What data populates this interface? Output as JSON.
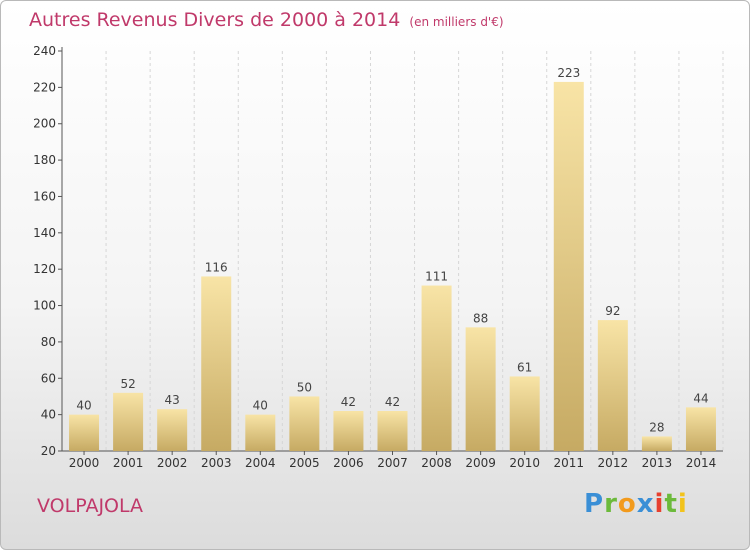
{
  "title": "Autres Revenus Divers de 2000 à 2014",
  "unit": "(en milliers d'€)",
  "commune": "VOLPAJOLA",
  "brand": {
    "letters": [
      "P",
      "r",
      "o",
      "x",
      "i",
      "t",
      "i"
    ],
    "colors": [
      "#3a8fd6",
      "#6cba3b",
      "#f29a1c",
      "#3a8fd6",
      "#e7402f",
      "#6cba3b",
      "#f2c31c"
    ]
  },
  "colors": {
    "accent": "#c0396a",
    "bar_light": "#f7e2a2",
    "bar_dark": "#c8ad66",
    "axis": "#555555",
    "grid": "#d6d6d6"
  },
  "chart_data": {
    "type": "bar",
    "categories": [
      "2000",
      "2001",
      "2002",
      "2003",
      "2004",
      "2005",
      "2006",
      "2007",
      "2008",
      "2009",
      "2010",
      "2011",
      "2012",
      "2013",
      "2014"
    ],
    "values": [
      40,
      52,
      43,
      116,
      40,
      50,
      42,
      42,
      111,
      88,
      61,
      223,
      92,
      28,
      44
    ],
    "ylim": [
      20,
      240
    ],
    "yticks": [
      20,
      40,
      60,
      80,
      100,
      120,
      140,
      160,
      180,
      200,
      220,
      240
    ],
    "grid": "vertical dashed"
  }
}
